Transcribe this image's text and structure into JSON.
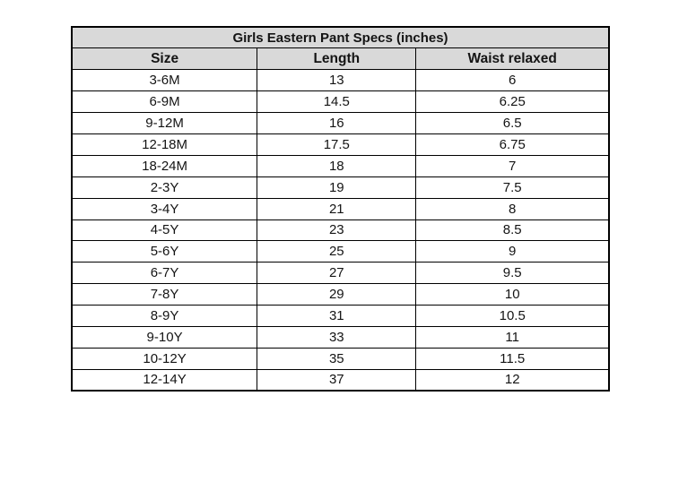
{
  "table": {
    "title": "Girls Eastern Pant Specs (inches)",
    "columns": [
      "Size",
      "Length",
      "Waist relaxed"
    ],
    "rows": [
      [
        "3-6M",
        "13",
        "6"
      ],
      [
        "6-9M",
        "14.5",
        "6.25"
      ],
      [
        "9-12M",
        "16",
        "6.5"
      ],
      [
        "12-18M",
        "17.5",
        "6.75"
      ],
      [
        "18-24M",
        "18",
        "7"
      ],
      [
        "2-3Y",
        "19",
        "7.5"
      ],
      [
        "3-4Y",
        "21",
        "8"
      ],
      [
        "4-5Y",
        "23",
        "8.5"
      ],
      [
        "5-6Y",
        "25",
        "9"
      ],
      [
        "6-7Y",
        "27",
        "9.5"
      ],
      [
        "7-8Y",
        "29",
        "10"
      ],
      [
        "8-9Y",
        "31",
        "10.5"
      ],
      [
        "9-10Y",
        "33",
        "11"
      ],
      [
        "10-12Y",
        "35",
        "11.5"
      ],
      [
        "12-14Y",
        "37",
        "12"
      ]
    ],
    "colors": {
      "header_bg": "#d9d9d9",
      "border": "#000000",
      "text": "#141414",
      "row_bg": "#ffffff",
      "page_bg": "#ffffff"
    }
  },
  "chart_data": {
    "type": "table",
    "title": "Girls Eastern Pant Specs (inches)",
    "columns": [
      "Size",
      "Length",
      "Waist relaxed"
    ],
    "categories": [
      "3-6M",
      "6-9M",
      "9-12M",
      "12-18M",
      "18-24M",
      "2-3Y",
      "3-4Y",
      "4-5Y",
      "5-6Y",
      "6-7Y",
      "7-8Y",
      "8-9Y",
      "9-10Y",
      "10-12Y",
      "12-14Y"
    ],
    "series": [
      {
        "name": "Length",
        "values": [
          13,
          14.5,
          16,
          17.5,
          18,
          19,
          21,
          23,
          25,
          27,
          29,
          31,
          33,
          35,
          37
        ]
      },
      {
        "name": "Waist relaxed",
        "values": [
          6,
          6.25,
          6.5,
          6.75,
          7,
          7.5,
          8,
          8.5,
          9,
          9.5,
          10,
          10.5,
          11,
          11.5,
          12
        ]
      }
    ],
    "units": "inches"
  }
}
